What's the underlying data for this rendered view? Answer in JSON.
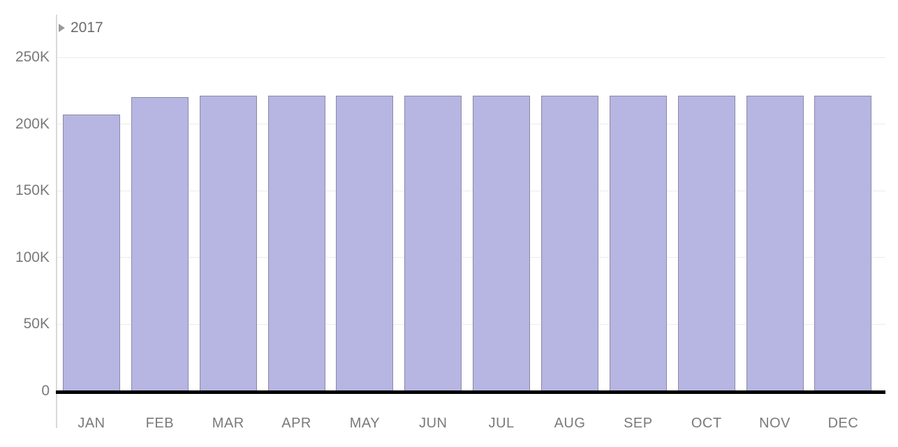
{
  "header": {
    "year_label": "2017"
  },
  "chart_data": {
    "type": "bar",
    "title": "",
    "xlabel": "",
    "ylabel": "",
    "categories": [
      "JAN",
      "FEB",
      "MAR",
      "APR",
      "MAY",
      "JUN",
      "JUL",
      "AUG",
      "SEP",
      "OCT",
      "NOV",
      "DEC"
    ],
    "series": [
      {
        "name": "2017",
        "values": [
          207000,
          220000,
          221000,
          221000,
          221000,
          221000,
          221000,
          221000,
          221000,
          221000,
          221000,
          221000
        ]
      }
    ],
    "y_ticks": [
      {
        "label": "250K",
        "value": 250000
      },
      {
        "label": "200K",
        "value": 200000
      },
      {
        "label": "150K",
        "value": 150000
      },
      {
        "label": "100K",
        "value": 100000
      },
      {
        "label": "50K",
        "value": 50000
      },
      {
        "label": "0",
        "value": 0
      }
    ],
    "ylim": [
      0,
      250000
    ],
    "grid": true,
    "legend_position": "none",
    "colors": {
      "bar_fill": "#b7b5e1",
      "bar_border": "#8b89a9",
      "gridline": "#ececec",
      "axis_line": "#d9d9d9",
      "baseline": "#000000",
      "tick_text": "#7a7a7a",
      "year_text": "#6b6b6b",
      "disclosure_icon": "#9a9a9a"
    }
  }
}
